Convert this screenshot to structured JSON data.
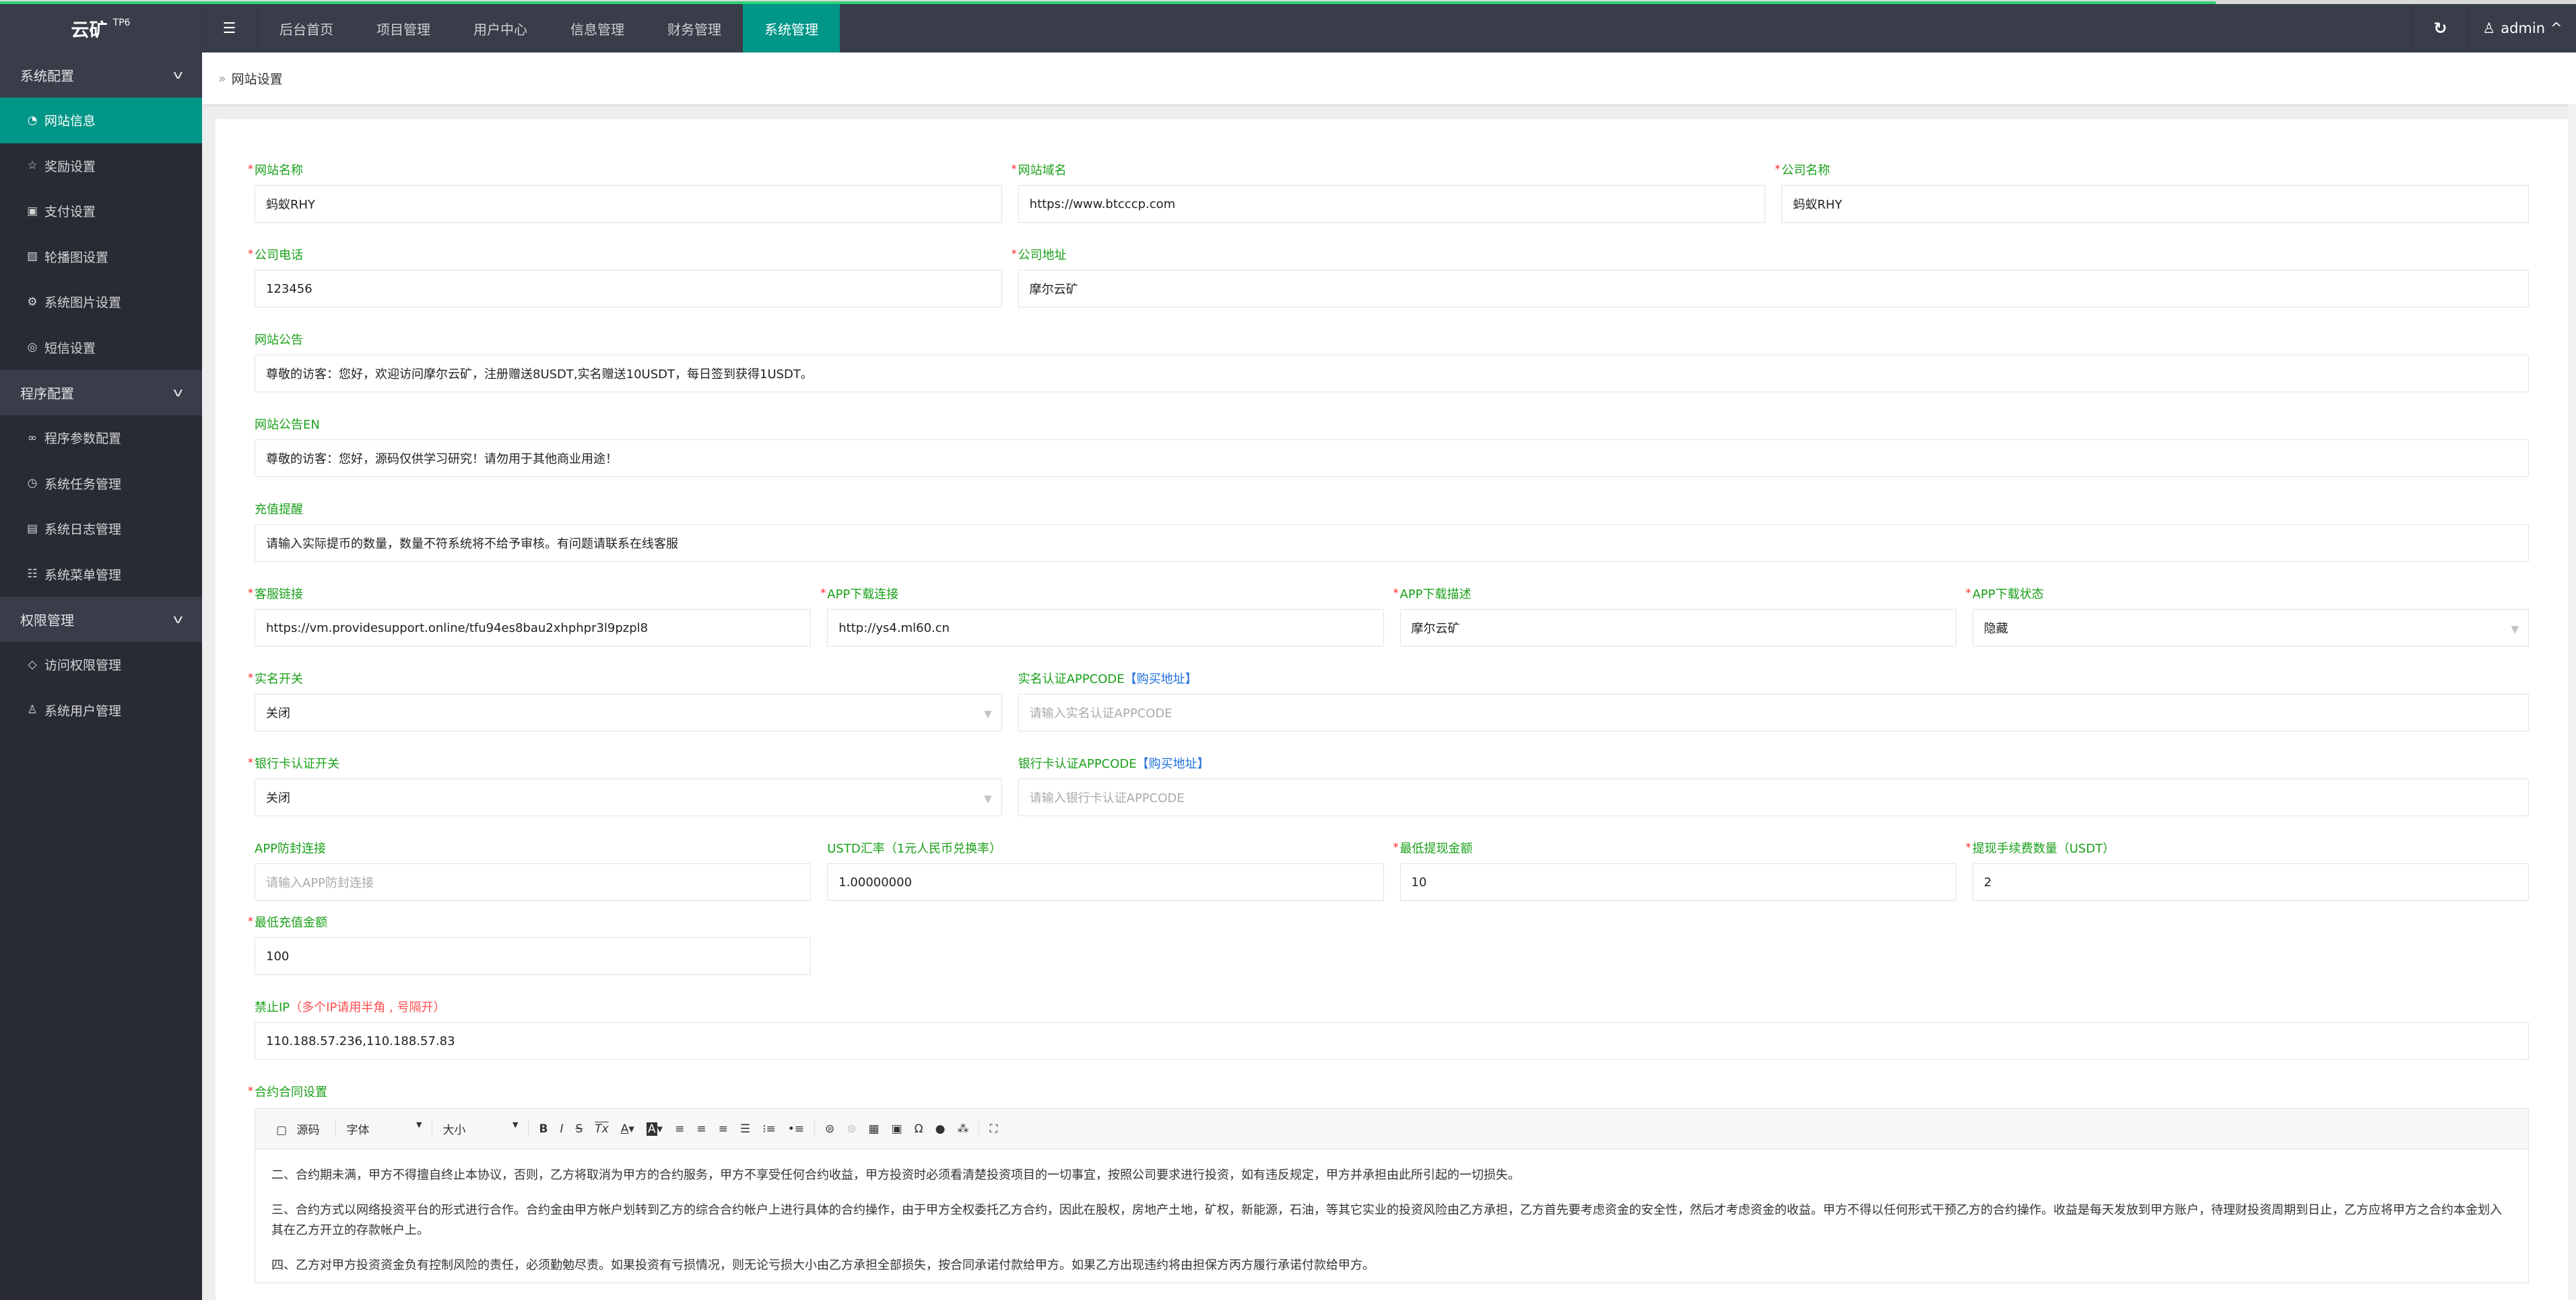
{
  "app": {
    "logo": "云矿",
    "logo_sup": "TP6"
  },
  "header": {
    "menu_icon": "hamburger-icon",
    "nav": [
      "后台首页",
      "项目管理",
      "用户中心",
      "信息管理",
      "财务管理",
      "系统管理"
    ],
    "active_nav": "系统管理",
    "user": "admin",
    "accent": "#009688",
    "progress_percent": 86
  },
  "sidebar": {
    "groups": [
      {
        "label": "系统配置",
        "items": [
          "网站信息",
          "奖励设置",
          "支付设置",
          "轮播图设置",
          "系统图片设置",
          "短信设置"
        ]
      },
      {
        "label": "程序配置",
        "items": [
          "程序参数配置",
          "系统任务管理",
          "系统日志管理",
          "系统菜单管理"
        ]
      },
      {
        "label": "权限管理",
        "items": [
          "访问权限管理",
          "系统用户管理"
        ]
      }
    ],
    "active_item": "网站信息"
  },
  "breadcrumb": {
    "current": "网站设置"
  },
  "form": {
    "site_name": {
      "label": "网站名称",
      "value": "蚂蚁RHY"
    },
    "site_domain": {
      "label": "网站域名",
      "value": "https://www.btcccp.com"
    },
    "company_name": {
      "label": "公司名称",
      "value": "蚂蚁RHY"
    },
    "company_phone": {
      "label": "公司电话",
      "value": "123456"
    },
    "company_address": {
      "label": "公司地址",
      "value": "摩尔云矿"
    },
    "notice": {
      "label": "网站公告",
      "value": "尊敬的访客：您好，欢迎访问摩尔云矿，注册赠送8USDT,实名赠送10USDT，每日签到获得1USDT。"
    },
    "notice_en": {
      "label": "网站公告EN",
      "value": "尊敬的访客：您好，源码仅供学习研究！请勿用于其他商业用途！"
    },
    "recharge_tip": {
      "label": "充值提醒",
      "value": "请输入实际提币的数量，数量不符系统将不给予审核。有问题请联系在线客服"
    },
    "service_link": {
      "label": "客服链接",
      "value": "https://vm.providesupport.online/tfu94es8bau2xhphpr3l9pzpl8"
    },
    "app_link": {
      "label": "APP下载连接",
      "value": "http://ys4.ml60.cn"
    },
    "app_desc": {
      "label": "APP下载描述",
      "value": "摩尔云矿"
    },
    "app_status": {
      "label": "APP下载状态",
      "value": "隐藏"
    },
    "realname_switch": {
      "label": "实名开关",
      "value": "关闭"
    },
    "realname_appcode": {
      "label": "实名认证APPCODE",
      "link": "【购买地址】",
      "placeholder": "请输入实名认证APPCODE"
    },
    "bank_switch": {
      "label": "银行卡认证开关",
      "value": "关闭"
    },
    "bank_appcode": {
      "label": "银行卡认证APPCODE",
      "link": "【购买地址】",
      "placeholder": "请输入银行卡认证APPCODE"
    },
    "app_antiblock": {
      "label": "APP防封连接",
      "placeholder": "请输入APP防封连接"
    },
    "usdt_rate": {
      "label": "USTD汇率（1元人民币兑换率）",
      "value": "1.00000000"
    },
    "min_withdraw": {
      "label": "最低提现金额",
      "value": "10"
    },
    "withdraw_fee": {
      "label": "提现手续费数量（USDT）",
      "value": "2"
    },
    "min_recharge": {
      "label": "最低充值金额",
      "value": "100"
    },
    "ban_ip": {
      "label": "禁止IP",
      "hint": "（多个IP请用半角 , 号隔开）",
      "value": "110.188.57.236,110.188.57.83"
    },
    "contract": {
      "label": "合约合同设置"
    }
  },
  "editor": {
    "toolbar": {
      "source": "源码",
      "font": "字体",
      "size": "大小",
      "bold": "B",
      "italic": "I",
      "strike": "S",
      "clear": "Tx",
      "fore": "A",
      "back": "A",
      "omega": "Ω"
    },
    "paragraphs": [
      "二、合约期未满，甲方不得擅自终止本协议，否则，乙方将取消为甲方的合约服务，甲方不享受任何合约收益，甲方投资时必须看清楚投资项目的一切事宜，按照公司要求进行投资，如有违反规定，甲方并承担由此所引起的一切损失。",
      "三、合约方式以网络投资平台的形式进行合作。合约金由甲方帐户划转到乙方的综合合约帐户上进行具体的合约操作，由于甲方全权委托乙方合约，因此在股权，房地产土地，矿权，新能源，石油，等其它实业的投资风险由乙方承担，乙方首先要考虑资金的安全性，然后才考虑资金的收益。甲方不得以任何形式干预乙方的合约操作。收益是每天发放到甲方账户，待理财投资周期到日止，乙方应将甲方之合约本金划入其在乙方开立的存款帐户上。",
      "四、乙方对甲方投资资金负有控制风险的责任，必须勤勉尽责。如果投资有亏损情况，则无论亏损大小由乙方承担全部损失，按合同承诺付款给甲方。如果乙方出现违约将由担保方丙方履行承诺付款给甲方。"
    ]
  }
}
